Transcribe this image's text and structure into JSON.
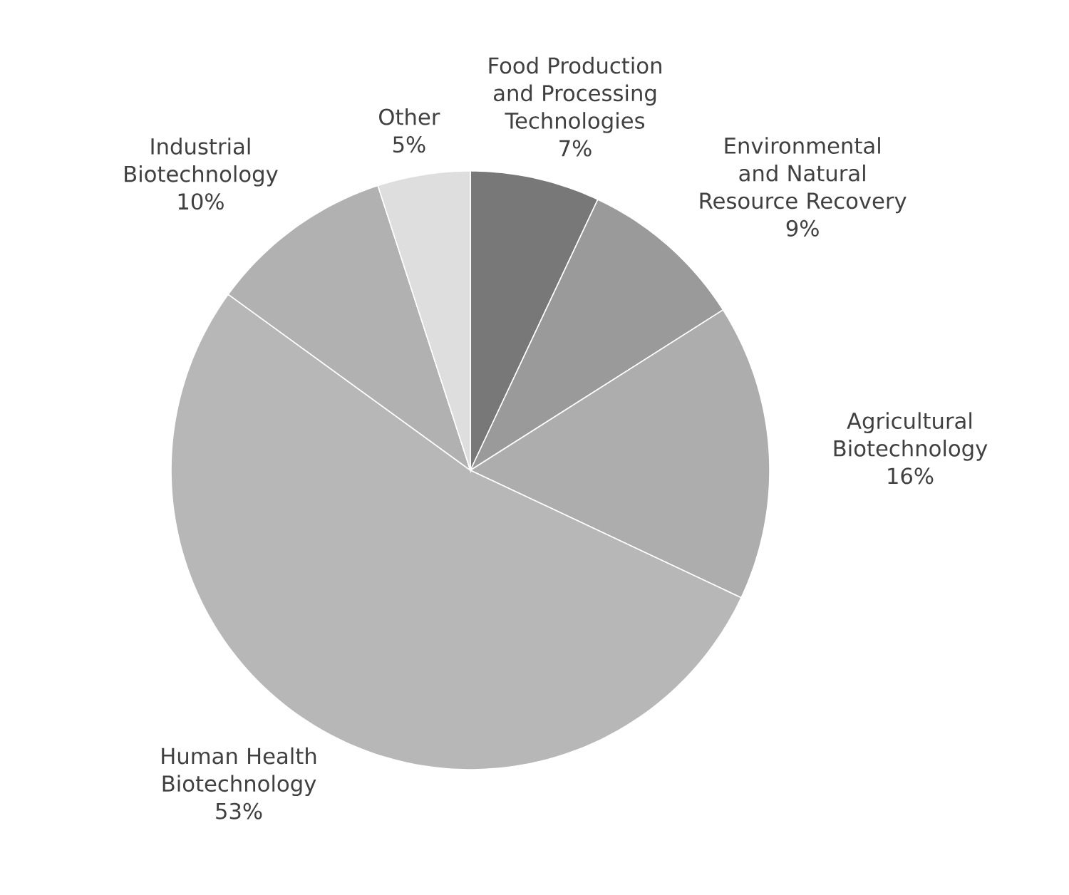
{
  "chart_data": {
    "type": "pie",
    "categories": [
      "Food Production and Processing Technologies",
      "Environmental and Natural Resource Recovery",
      "Agricultural Biotechnology",
      "Human Health Biotechnology",
      "Industrial Biotechnology",
      "Other"
    ],
    "values": [
      7,
      9,
      16,
      53,
      10,
      5
    ],
    "value_labels": [
      "7%",
      "9%",
      "16%",
      "53%",
      "10%",
      "5%"
    ],
    "colors": [
      "#787878",
      "#9a9a9a",
      "#adadad",
      "#b7b7b7",
      "#b1b1b1",
      "#dedede"
    ]
  }
}
